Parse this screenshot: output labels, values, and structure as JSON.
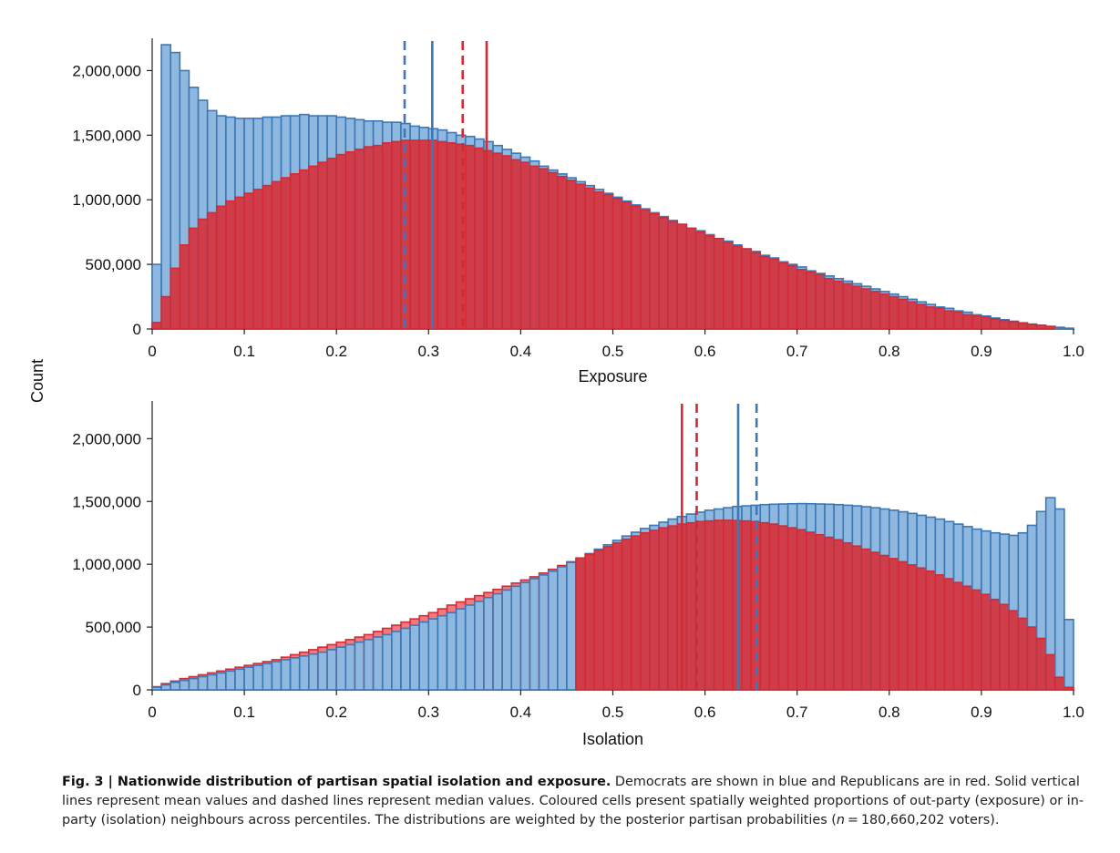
{
  "colors": {
    "dem_fill": "#8fb8e0",
    "dem_stroke": "#3b78b5",
    "rep_fill": "#cf3d4a",
    "rep_light_fill": "#f07a80",
    "rep_stroke": "#d42a33",
    "axis": "#222222"
  },
  "shared_ylabel": "Count",
  "chart_data": [
    {
      "type": "bar",
      "name": "exposure",
      "xlabel": "Exposure",
      "ylabel": "Count",
      "xlim": [
        0,
        1
      ],
      "ylim": [
        0,
        2250000
      ],
      "xticks": [
        "0",
        "0.1",
        "0.2",
        "0.3",
        "0.4",
        "0.5",
        "0.6",
        "0.7",
        "0.8",
        "0.9",
        "1.0"
      ],
      "yticks": [
        "0",
        "500,000",
        "1,000,000",
        "1,500,000",
        "2,000,000"
      ],
      "bin_width": 0.01,
      "series": [
        {
          "key": "dem",
          "values": [
            500000,
            2200000,
            2140000,
            2000000,
            1870000,
            1770000,
            1690000,
            1650000,
            1640000,
            1630000,
            1630000,
            1630000,
            1640000,
            1640000,
            1650000,
            1650000,
            1660000,
            1650000,
            1650000,
            1650000,
            1640000,
            1630000,
            1620000,
            1610000,
            1610000,
            1600000,
            1600000,
            1590000,
            1570000,
            1560000,
            1550000,
            1540000,
            1520000,
            1500000,
            1490000,
            1470000,
            1450000,
            1420000,
            1390000,
            1360000,
            1330000,
            1300000,
            1260000,
            1230000,
            1200000,
            1170000,
            1140000,
            1110000,
            1080000,
            1050000,
            1020000,
            990000,
            960000,
            930000,
            900000,
            870000,
            840000,
            810000,
            780000,
            760000,
            730000,
            700000,
            680000,
            650000,
            620000,
            600000,
            570000,
            550000,
            520000,
            500000,
            480000,
            450000,
            430000,
            410000,
            390000,
            370000,
            350000,
            330000,
            310000,
            290000,
            270000,
            250000,
            230000,
            210000,
            190000,
            170000,
            160000,
            140000,
            130000,
            110000,
            100000,
            85000,
            72000,
            60000,
            48000,
            38000,
            29000,
            20000,
            12000,
            5000
          ]
        },
        {
          "key": "rep",
          "values": [
            50000,
            250000,
            470000,
            650000,
            780000,
            850000,
            900000,
            950000,
            990000,
            1020000,
            1050000,
            1080000,
            1110000,
            1140000,
            1170000,
            1200000,
            1230000,
            1260000,
            1290000,
            1320000,
            1350000,
            1370000,
            1390000,
            1410000,
            1420000,
            1440000,
            1450000,
            1460000,
            1460000,
            1460000,
            1460000,
            1450000,
            1440000,
            1430000,
            1420000,
            1400000,
            1380000,
            1360000,
            1340000,
            1310000,
            1290000,
            1260000,
            1240000,
            1210000,
            1180000,
            1150000,
            1120000,
            1090000,
            1060000,
            1040000,
            1010000,
            980000,
            950000,
            920000,
            890000,
            860000,
            830000,
            810000,
            780000,
            750000,
            720000,
            700000,
            670000,
            640000,
            620000,
            590000,
            560000,
            540000,
            510000,
            490000,
            460000,
            440000,
            420000,
            390000,
            370000,
            350000,
            330000,
            310000,
            290000,
            270000,
            250000,
            230000,
            210000,
            190000,
            170000,
            160000,
            140000,
            130000,
            110000,
            100000,
            90000,
            78000,
            66000,
            55000,
            45000,
            36000,
            28000,
            20000,
            13000,
            6000
          ]
        }
      ],
      "reference_lines": [
        {
          "series": "dem",
          "stat": "median",
          "style": "dashed",
          "x": 0.274
        },
        {
          "series": "dem",
          "stat": "mean",
          "style": "solid",
          "x": 0.304
        },
        {
          "series": "rep",
          "stat": "median",
          "style": "dashed",
          "x": 0.337
        },
        {
          "series": "rep",
          "stat": "mean",
          "style": "solid",
          "x": 0.363
        }
      ],
      "grid": false,
      "legend": "none"
    },
    {
      "type": "bar",
      "name": "isolation",
      "xlabel": "Isolation",
      "ylabel": "Count",
      "xlim": [
        0,
        1
      ],
      "ylim": [
        0,
        2300000
      ],
      "xticks": [
        "0",
        "0.1",
        "0.2",
        "0.3",
        "0.4",
        "0.5",
        "0.6",
        "0.7",
        "0.8",
        "0.9",
        "1.0"
      ],
      "yticks": [
        "0",
        "500,000",
        "1,000,000",
        "1,500,000",
        "2,000,000"
      ],
      "bin_width": 0.01,
      "series": [
        {
          "key": "dem",
          "values": [
            20000,
            40000,
            60000,
            75000,
            90000,
            105000,
            120000,
            135000,
            150000,
            165000,
            180000,
            195000,
            210000,
            225000,
            240000,
            255000,
            270000,
            285000,
            300000,
            320000,
            340000,
            360000,
            380000,
            400000,
            420000,
            440000,
            465000,
            490000,
            515000,
            540000,
            565000,
            590000,
            615000,
            645000,
            675000,
            705000,
            735000,
            765000,
            795000,
            825000,
            855000,
            885000,
            915000,
            945000,
            980000,
            1015000,
            1050000,
            1085000,
            1120000,
            1155000,
            1190000,
            1225000,
            1255000,
            1285000,
            1310000,
            1335000,
            1360000,
            1380000,
            1400000,
            1415000,
            1430000,
            1440000,
            1450000,
            1460000,
            1465000,
            1470000,
            1475000,
            1478000,
            1480000,
            1482000,
            1483000,
            1482000,
            1480000,
            1478000,
            1475000,
            1470000,
            1465000,
            1458000,
            1450000,
            1440000,
            1430000,
            1418000,
            1405000,
            1390000,
            1375000,
            1360000,
            1340000,
            1320000,
            1300000,
            1280000,
            1265000,
            1250000,
            1240000,
            1230000,
            1250000,
            1310000,
            1420000,
            1530000,
            1440000,
            560000
          ]
        },
        {
          "key": "rep",
          "values": [
            25000,
            50000,
            70000,
            90000,
            105000,
            120000,
            135000,
            150000,
            165000,
            180000,
            195000,
            210000,
            225000,
            240000,
            260000,
            280000,
            300000,
            320000,
            340000,
            360000,
            380000,
            400000,
            420000,
            440000,
            465000,
            490000,
            515000,
            540000,
            565000,
            590000,
            615000,
            645000,
            675000,
            700000,
            725000,
            750000,
            775000,
            800000,
            825000,
            850000,
            875000,
            900000,
            930000,
            960000,
            990000,
            1020000,
            1050000,
            1080000,
            1110000,
            1140000,
            1170000,
            1200000,
            1225000,
            1250000,
            1270000,
            1290000,
            1305000,
            1320000,
            1330000,
            1340000,
            1345000,
            1350000,
            1350000,
            1348000,
            1345000,
            1340000,
            1330000,
            1320000,
            1305000,
            1290000,
            1275000,
            1255000,
            1235000,
            1215000,
            1195000,
            1170000,
            1145000,
            1120000,
            1095000,
            1070000,
            1045000,
            1020000,
            995000,
            970000,
            945000,
            915000,
            885000,
            855000,
            825000,
            795000,
            760000,
            720000,
            680000,
            630000,
            570000,
            500000,
            410000,
            280000,
            100000,
            20000
          ]
        }
      ],
      "reference_lines": [
        {
          "series": "rep",
          "stat": "mean",
          "style": "solid",
          "x": 0.575
        },
        {
          "series": "rep",
          "stat": "median",
          "style": "dashed",
          "x": 0.591
        },
        {
          "series": "dem",
          "stat": "mean",
          "style": "solid",
          "x": 0.636
        },
        {
          "series": "dem",
          "stat": "median",
          "style": "dashed",
          "x": 0.656
        }
      ],
      "grid": false,
      "legend": "none"
    }
  ],
  "caption": {
    "label": "Fig. 3 | Nationwide distribution of partisan spatial isolation and exposure.",
    "text_part1": " Democrats are shown in blue and Republicans are in red. Solid vertical lines represent mean values and dashed lines represent median values. Coloured cells present spatially weighted proportions of out-party (exposure) or in-party (isolation) neighbours across percentiles. The distributions are weighted by the posterior partisan probabilities (",
    "n_symbol": "n",
    "text_part2": " = 180,660,202 voters)."
  }
}
